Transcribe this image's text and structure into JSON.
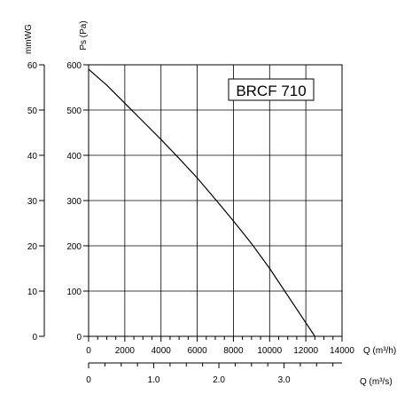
{
  "chart_data": {
    "type": "line",
    "title": "BRCF 710",
    "y_left_outer": {
      "label": "mmWG",
      "ticks": [
        "0",
        "10",
        "20",
        "30",
        "40",
        "50",
        "60"
      ],
      "range": [
        0,
        60
      ]
    },
    "y_left_inner": {
      "label": "Ps (Pa)",
      "ticks": [
        "0",
        "100",
        "200",
        "300",
        "400",
        "500",
        "600"
      ],
      "range": [
        0,
        600
      ]
    },
    "x_primary": {
      "label": "Q (m³/h)",
      "ticks": [
        "0",
        "2000",
        "4000",
        "6000",
        "8000",
        "10000",
        "12000",
        "14000"
      ],
      "range": [
        0,
        14000
      ]
    },
    "x_secondary": {
      "label": "Q (m³/s)",
      "ticks": [
        "0",
        "1.0",
        "2.0",
        "3.0"
      ],
      "range": [
        0,
        3.89
      ]
    },
    "grid": true,
    "series": [
      {
        "x": [
          0,
          1000,
          2000,
          3000,
          4000,
          5000,
          6000,
          7000,
          8000,
          9000,
          10000,
          11000,
          12000,
          12500
        ],
        "y": [
          590,
          555,
          515,
          475,
          435,
          393,
          350,
          303,
          255,
          205,
          150,
          90,
          30,
          0
        ]
      }
    ]
  }
}
